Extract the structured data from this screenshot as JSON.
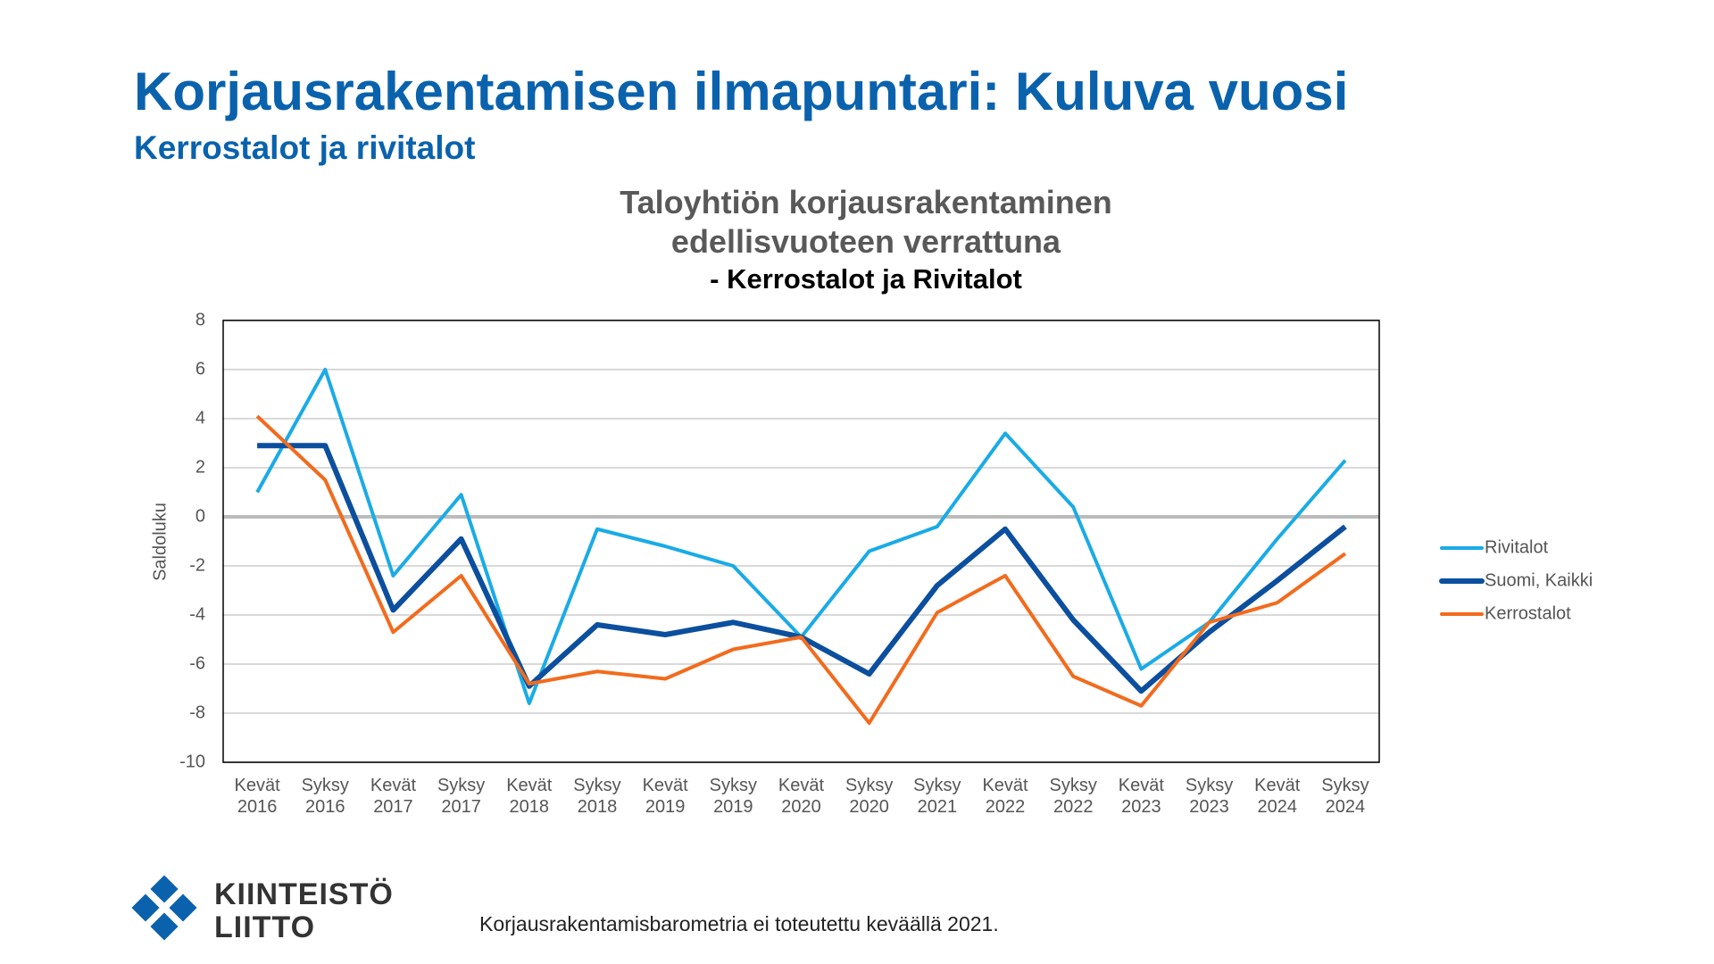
{
  "slide": {
    "title": "Korjausrakentamisen ilmapuntari: Kuluva vuosi",
    "subtitle": "Kerrostalot ja rivitalot",
    "logo": [
      "KIINTEISTÖ",
      "LIITTO"
    ],
    "footnote": "Korjausrakentamisbarometria ei toteutettu keväällä 2021."
  },
  "chart_data": {
    "type": "line",
    "title": "Taloyhtiön korjausrakentaminen edellisvuoteen verrattuna",
    "subtitle": "- Kerrostalot ja Rivitalot",
    "y_label": "Saldoluku",
    "categories": [
      "Kevät 2016",
      "Syksy 2016",
      "Kevät 2017",
      "Syksy 2017",
      "Kevät 2018",
      "Syksy 2018",
      "Kevät 2019",
      "Syksy 2019",
      "Kevät 2020",
      "Syksy 2020",
      "Syksy 2021",
      "Kevät 2022",
      "Syksy 2022",
      "Kevät 2023",
      "Syksy 2023",
      "Kevät 2024",
      "Syksy 2024"
    ],
    "series": [
      {
        "name": "Rivitalot",
        "color": "#1aabe6",
        "width": 4,
        "values": [
          1,
          6,
          -2.4,
          0.9,
          -7.6,
          -0.5,
          -1.2,
          -2,
          -4.9,
          -1.4,
          -0.4,
          3.4,
          0.4,
          -6.2,
          -4.3,
          -0.9,
          2.3
        ]
      },
      {
        "name": "Suomi, Kaikki",
        "color": "#0b4f9e",
        "width": 6,
        "values": [
          2.9,
          2.9,
          -3.8,
          -0.9,
          -6.9,
          -4.4,
          -4.8,
          -4.3,
          -4.9,
          -6.4,
          -2.8,
          -0.5,
          -4.2,
          -7.1,
          -4.7,
          -2.6,
          -0.4
        ]
      },
      {
        "name": "Kerrostalot",
        "color": "#f26b1d",
        "width": 4,
        "values": [
          4.1,
          1.5,
          -4.7,
          -2.4,
          -6.8,
          -6.3,
          -6.6,
          -5.4,
          -4.9,
          -8.4,
          -3.9,
          -2.4,
          -6.5,
          -7.7,
          -4.3,
          -3.5,
          -1.5
        ]
      }
    ],
    "ylim": [
      -10,
      8
    ],
    "yticks": [
      -10,
      -8,
      -6,
      -4,
      -2,
      0,
      2,
      4,
      6,
      8
    ],
    "grid": true,
    "legend": "right"
  }
}
